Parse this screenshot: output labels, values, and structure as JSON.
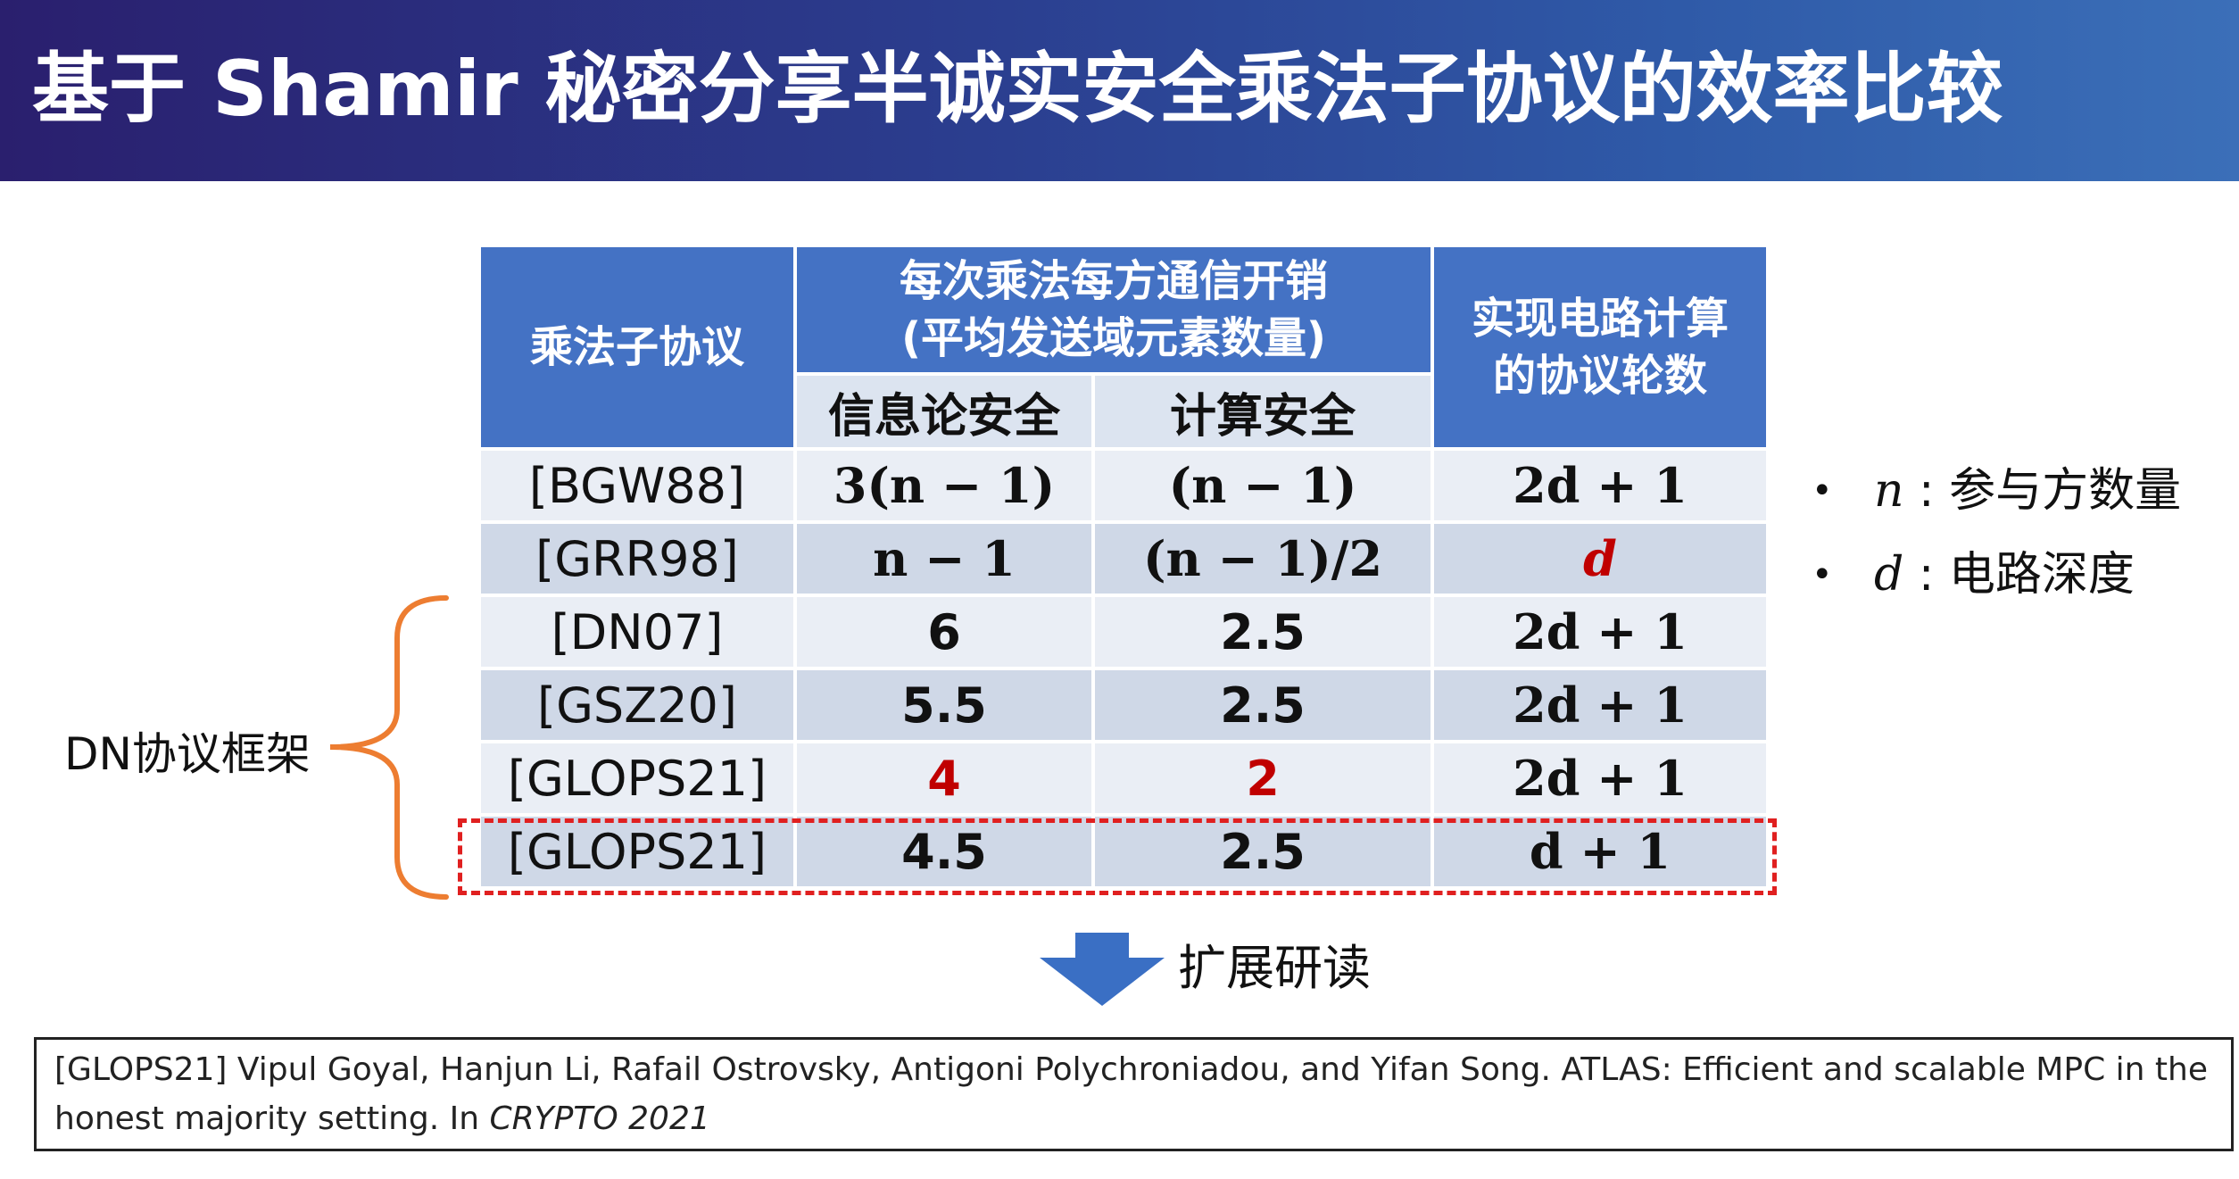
{
  "slide": {
    "title": "基于 Shamir 秘密分享半诚实安全乘法子协议的效率比较"
  },
  "table": {
    "headers": {
      "protocol": "乘法子协议",
      "comm_cost": "每次乘法每方通信开销\n(平均发送域元素数量)",
      "info_theoretic": "信息论安全",
      "computational": "计算安全",
      "rounds": "实现电路计算\n的协议轮数"
    },
    "rows": [
      {
        "protocol": "[BGW88]",
        "info": "3(n − 1)",
        "comp": "(n − 1)",
        "rounds": "2d + 1"
      },
      {
        "protocol": "[GRR98]",
        "info": "n − 1",
        "comp": "(n − 1)/2",
        "rounds": "d"
      },
      {
        "protocol": "[DN07]",
        "info": "6",
        "comp": "2.5",
        "rounds": "2d + 1"
      },
      {
        "protocol": "[GSZ20]",
        "info": "5.5",
        "comp": "2.5",
        "rounds": "2d + 1"
      },
      {
        "protocol": "[GLOPS21]",
        "info": "4",
        "comp": "2",
        "rounds": "2d + 1"
      },
      {
        "protocol": "[GLOPS21]",
        "info": "4.5",
        "comp": "2.5",
        "rounds": "d + 1"
      }
    ]
  },
  "colors": {
    "header_blue": "#4472c4",
    "highlight_red": "#c00000",
    "brace_orange": "#ed7d31",
    "dash_red": "#e02020",
    "arrow_blue": "#3a6fc4"
  },
  "annotations": {
    "dn_framework": "DN协议框架",
    "further_reading": "扩展研读"
  },
  "legend": [
    {
      "var": "n",
      "sep": " : ",
      "desc": "参与方数量"
    },
    {
      "var": "d",
      "sep": " : ",
      "desc": "电路深度"
    }
  ],
  "reference": {
    "text": "[GLOPS21] Vipul Goyal, Hanjun Li, Rafail Ostrovsky, Antigoni Polychroniadou, and Yifan Song. ATLAS: Efficient and scalable MPC in the honest majority setting. In ",
    "venue": "CRYPTO 2021"
  }
}
